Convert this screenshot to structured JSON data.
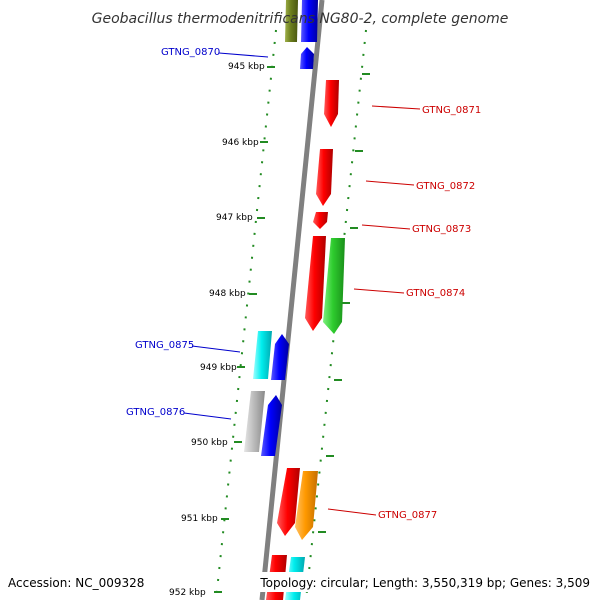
{
  "title": "Geobacillus thermodenitrificans NG80-2, complete genome",
  "accession": "Accession: NC_009328",
  "topology": "Topology: circular; Length: 3,550,319 bp; Genes: 3,509",
  "colors": {
    "backbone": "#808080",
    "tick_major": "#228B22",
    "tick_minor": "#228B22",
    "label_forward": "#cc0000",
    "label_reverse": "#0000cc"
  },
  "ticks": [
    "945 kbp",
    "946 kbp",
    "947 kbp",
    "948 kbp",
    "949 kbp",
    "950 kbp",
    "951 kbp",
    "952 kbp"
  ],
  "genes": [
    {
      "name": "GTNG_0870",
      "strand": "reverse",
      "color": "blue"
    },
    {
      "name": "GTNG_0871",
      "strand": "forward",
      "color": "red"
    },
    {
      "name": "GTNG_0872",
      "strand": "forward",
      "color": "red"
    },
    {
      "name": "GTNG_0873",
      "strand": "forward",
      "color": "red"
    },
    {
      "name": "GTNG_0874",
      "strand": "forward",
      "color": "green"
    },
    {
      "name": "GTNG_0875",
      "strand": "reverse",
      "color": "cyan"
    },
    {
      "name": "GTNG_0876",
      "strand": "reverse",
      "color": "gray"
    },
    {
      "name": "GTNG_0877",
      "strand": "forward",
      "color": "orange"
    }
  ]
}
